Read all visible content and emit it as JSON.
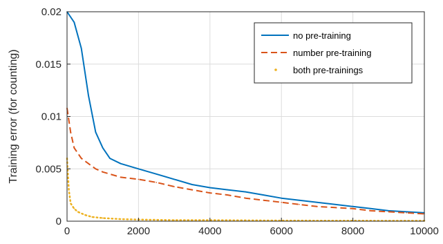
{
  "chart_data": {
    "type": "line",
    "title": "",
    "xlabel": "",
    "ylabel": "Training error (for counting)",
    "xlim": [
      0,
      10000
    ],
    "ylim": [
      0,
      0.02
    ],
    "xticks": [
      0,
      2000,
      4000,
      6000,
      8000,
      10000
    ],
    "xtick_labels": [
      "0",
      "2000",
      "4000",
      "6000",
      "8000",
      "10000"
    ],
    "yticks": [
      0,
      0.005,
      0.01,
      0.015,
      0.02
    ],
    "ytick_labels": [
      "0",
      "0.005",
      "0.01",
      "0.015",
      "0.02"
    ],
    "grid": true,
    "legend_position": "top-right",
    "series": [
      {
        "name": "no pre-training",
        "style": "solid",
        "color": "#0072BD",
        "points": [
          [
            0,
            0.02
          ],
          [
            200,
            0.019
          ],
          [
            400,
            0.0165
          ],
          [
            600,
            0.012
          ],
          [
            800,
            0.0085
          ],
          [
            1000,
            0.007
          ],
          [
            1200,
            0.006
          ],
          [
            1500,
            0.0055
          ],
          [
            2000,
            0.005
          ],
          [
            2500,
            0.0045
          ],
          [
            3000,
            0.004
          ],
          [
            3500,
            0.0035
          ],
          [
            4000,
            0.0032
          ],
          [
            4500,
            0.003
          ],
          [
            5000,
            0.0028
          ],
          [
            5500,
            0.0025
          ],
          [
            6000,
            0.0022
          ],
          [
            6500,
            0.002
          ],
          [
            7000,
            0.0018
          ],
          [
            7500,
            0.0016
          ],
          [
            8000,
            0.0014
          ],
          [
            8500,
            0.0012
          ],
          [
            9000,
            0.001
          ],
          [
            9500,
            0.0009
          ],
          [
            10000,
            0.0008
          ]
        ]
      },
      {
        "name": "number pre-training",
        "style": "dashed",
        "color": "#D95319",
        "points": [
          [
            0,
            0.0108
          ],
          [
            100,
            0.0085
          ],
          [
            200,
            0.007
          ],
          [
            400,
            0.006
          ],
          [
            600,
            0.0055
          ],
          [
            800,
            0.005
          ],
          [
            1000,
            0.0047
          ],
          [
            1500,
            0.0042
          ],
          [
            2000,
            0.004
          ],
          [
            2500,
            0.0037
          ],
          [
            3000,
            0.0033
          ],
          [
            3500,
            0.003
          ],
          [
            4000,
            0.0027
          ],
          [
            4500,
            0.0025
          ],
          [
            5000,
            0.0022
          ],
          [
            5500,
            0.002
          ],
          [
            6000,
            0.0018
          ],
          [
            6500,
            0.0016
          ],
          [
            7000,
            0.0014
          ],
          [
            7500,
            0.0013
          ],
          [
            8000,
            0.0012
          ],
          [
            8500,
            0.001
          ],
          [
            9000,
            0.0009
          ],
          [
            9500,
            0.0008
          ],
          [
            10000,
            0.0007
          ]
        ]
      },
      {
        "name": "both pre-trainings",
        "style": "dotted",
        "color": "#EDB120",
        "points": [
          [
            0,
            0.006
          ],
          [
            50,
            0.003
          ],
          [
            100,
            0.0017
          ],
          [
            200,
            0.0012
          ],
          [
            300,
            0.0009
          ],
          [
            500,
            0.0006
          ],
          [
            700,
            0.0004
          ],
          [
            1000,
            0.0003
          ],
          [
            1500,
            0.0002
          ],
          [
            2000,
            0.00015
          ],
          [
            3000,
            0.0001
          ],
          [
            4000,
            0.0001
          ],
          [
            5000,
            8e-05
          ],
          [
            6000,
            6e-05
          ],
          [
            7000,
            5e-05
          ],
          [
            8000,
            5e-05
          ],
          [
            9000,
            4e-05
          ],
          [
            10000,
            4e-05
          ]
        ]
      }
    ]
  }
}
